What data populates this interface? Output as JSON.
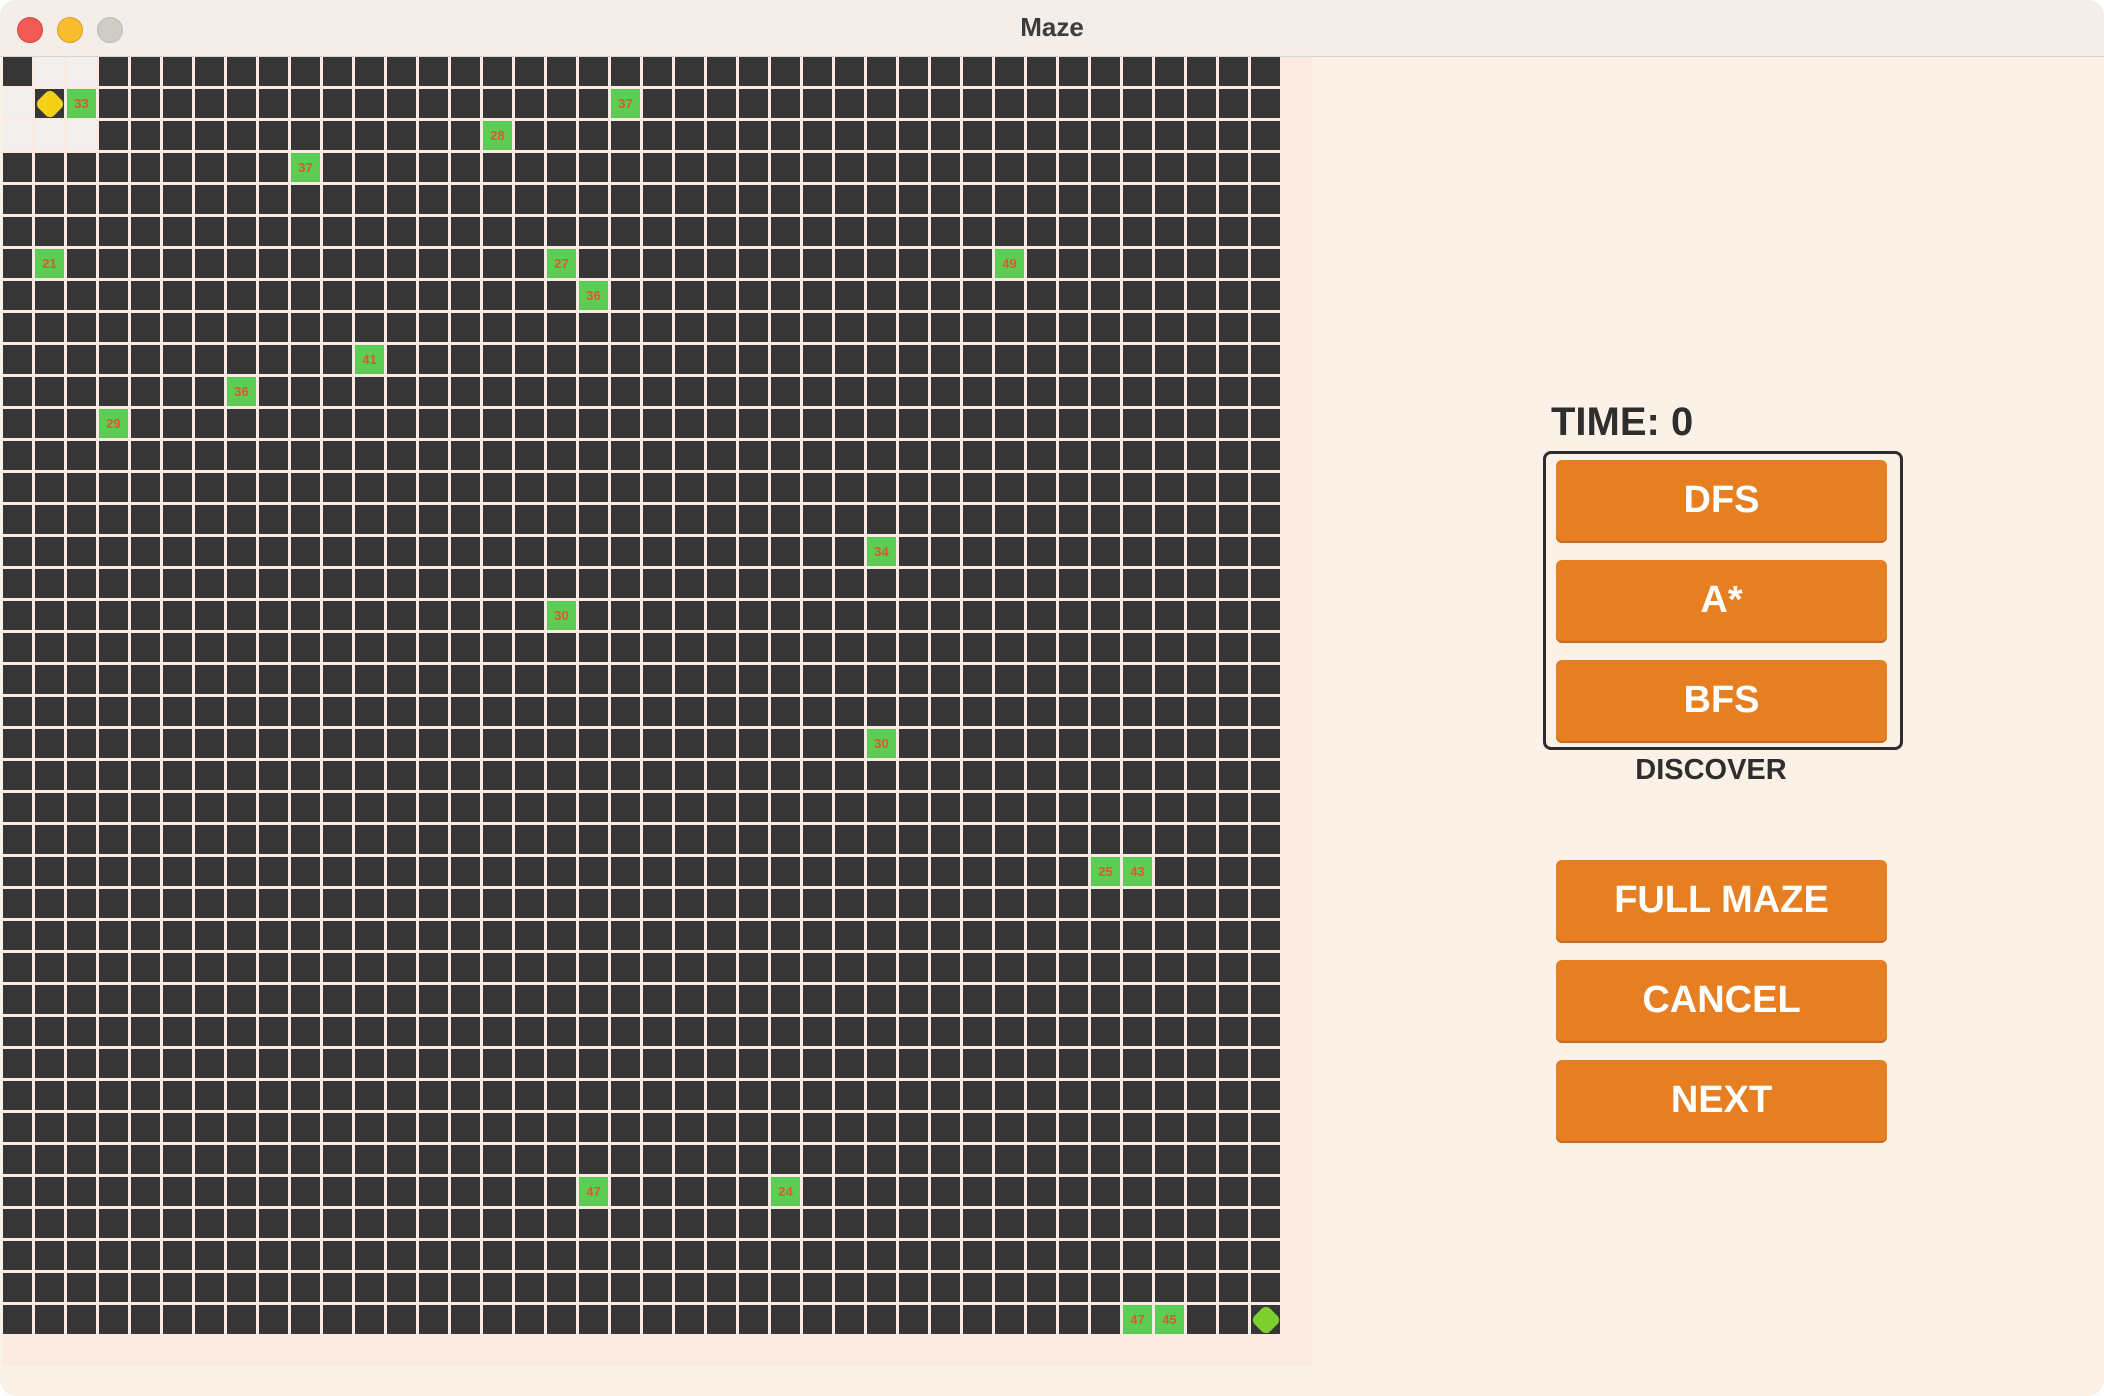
{
  "window": {
    "title": "Maze"
  },
  "maze": {
    "rows": 41,
    "cols": 41,
    "start": {
      "row": 1,
      "col": 1
    },
    "goal": {
      "row": 39,
      "col": 39
    },
    "visited_cells": [
      [
        0,
        1
      ],
      [
        0,
        2
      ],
      [
        2,
        1
      ],
      [
        1,
        0
      ],
      [
        2,
        0
      ],
      [
        2,
        2
      ]
    ],
    "numbered_cells": [
      {
        "row": 1,
        "col": 2,
        "label": "33"
      },
      {
        "row": 1,
        "col": 19,
        "label": "37"
      },
      {
        "row": 2,
        "col": 15,
        "label": "28"
      },
      {
        "row": 3,
        "col": 9,
        "label": "37"
      },
      {
        "row": 6,
        "col": 1,
        "label": "21"
      },
      {
        "row": 6,
        "col": 17,
        "label": "27"
      },
      {
        "row": 6,
        "col": 31,
        "label": "49"
      },
      {
        "row": 7,
        "col": 18,
        "label": "36"
      },
      {
        "row": 9,
        "col": 11,
        "label": "41"
      },
      {
        "row": 10,
        "col": 7,
        "label": "36"
      },
      {
        "row": 11,
        "col": 3,
        "label": "29"
      },
      {
        "row": 15,
        "col": 27,
        "label": "34"
      },
      {
        "row": 17,
        "col": 17,
        "label": "30"
      },
      {
        "row": 21,
        "col": 27,
        "label": "30"
      },
      {
        "row": 25,
        "col": 34,
        "label": "25"
      },
      {
        "row": 25,
        "col": 35,
        "label": "43"
      },
      {
        "row": 35,
        "col": 18,
        "label": "47"
      },
      {
        "row": 35,
        "col": 24,
        "label": "24"
      },
      {
        "row": 39,
        "col": 35,
        "label": "47"
      },
      {
        "row": 39,
        "col": 36,
        "label": "45"
      }
    ]
  },
  "panel": {
    "time_label": "TIME: 0",
    "algorithms": [
      "DFS",
      "A*",
      "BFS"
    ],
    "discover_label": "DISCOVER",
    "full_maze_label": "FULL MAZE",
    "cancel_label": "CANCEL",
    "next_label": "NEXT"
  },
  "colors": {
    "wall": "#363636",
    "grid_line": "#fbeae2",
    "button": "#e67e22",
    "number_tile": "#5ccc54",
    "number_text": "#e0572b",
    "start": "#f4d016",
    "goal": "#7ccf2e"
  }
}
